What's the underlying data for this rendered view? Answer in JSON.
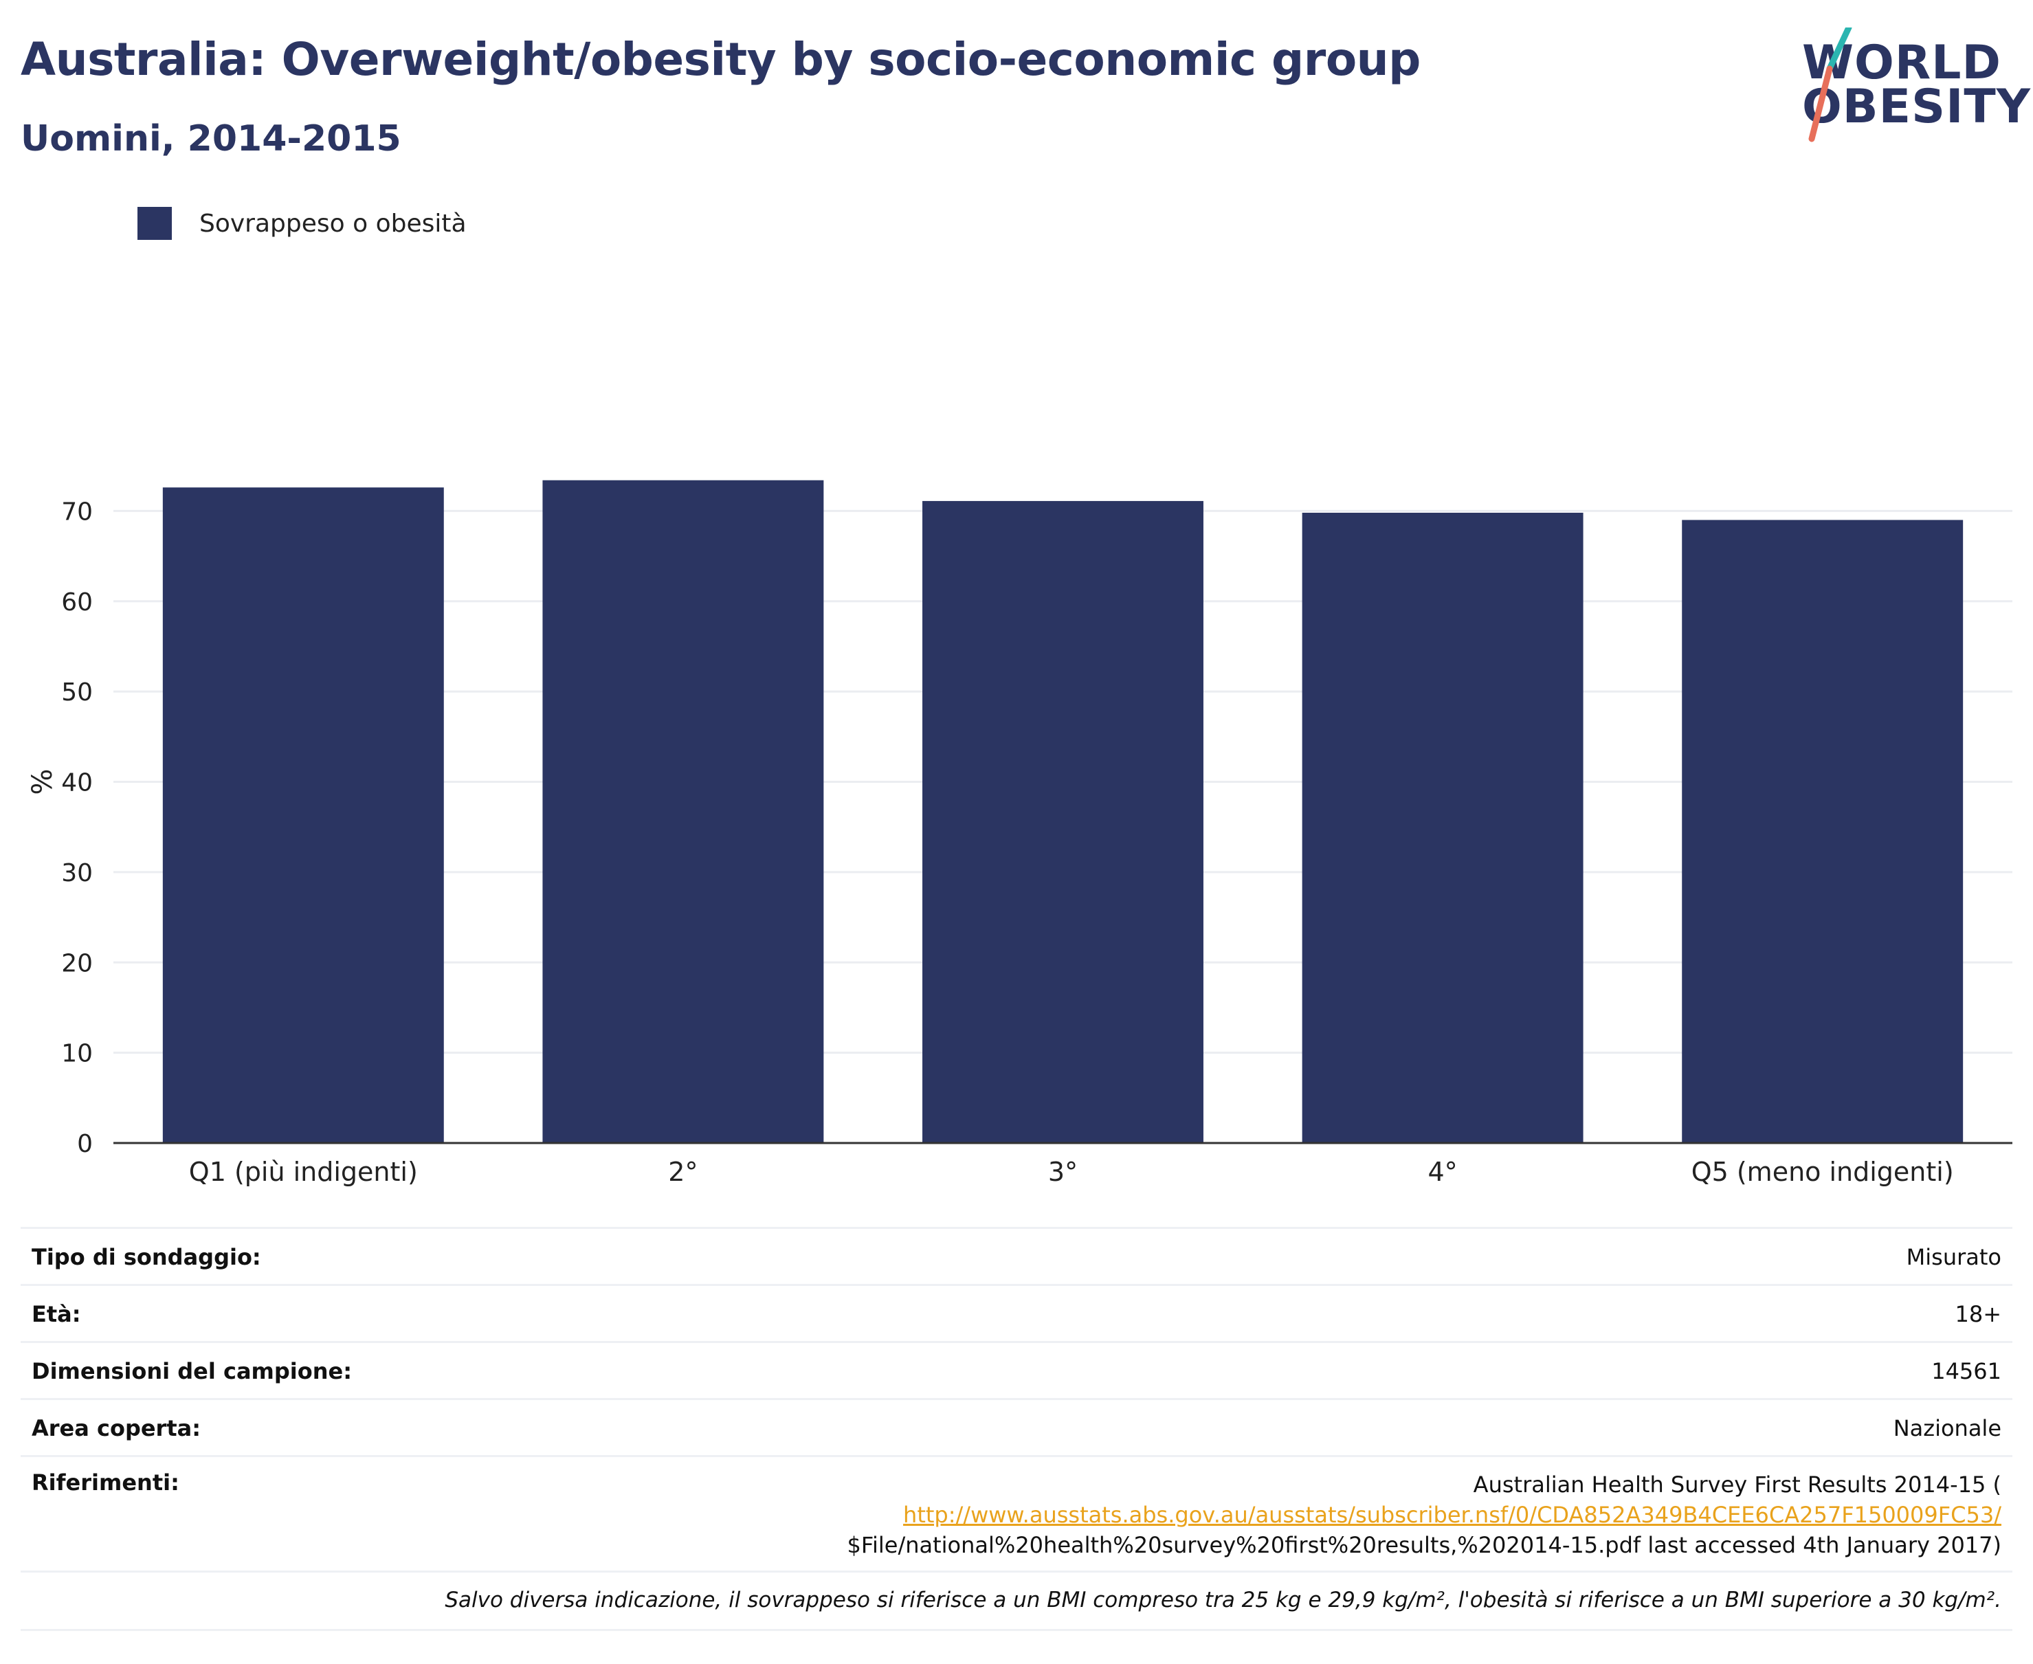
{
  "title": "Australia: Overweight/obesity by socio-economic group",
  "subtitle": "Uomini, 2014-2015",
  "logo": {
    "line1": "WORLD",
    "line2": "OBESITY"
  },
  "legend": {
    "label": "Sovrappeso o obesità",
    "color": "#2b3562"
  },
  "chart_data": {
    "type": "bar",
    "categories": [
      "Q1 (più indigenti)",
      "2°",
      "3°",
      "4°",
      "Q5 (meno indigenti)"
    ],
    "series": [
      {
        "name": "Sovrappeso o obesità",
        "values": [
          72.6,
          73.4,
          71.1,
          69.8,
          69.0
        ]
      }
    ],
    "ylabel": "%",
    "xlabel": "",
    "ylim": [
      0,
      80
    ],
    "yticks": [
      0,
      10,
      20,
      30,
      40,
      50,
      60,
      70
    ],
    "grid": true,
    "legend_position": "top-left",
    "bar_color": "#2b3562"
  },
  "meta": {
    "survey_type": {
      "label": "Tipo di sondaggio:",
      "value": "Misurato"
    },
    "age": {
      "label": "Età:",
      "value": "18+"
    },
    "sample_size": {
      "label": "Dimensioni del campione:",
      "value": "14561"
    },
    "area": {
      "label": "Area coperta:",
      "value": "Nazionale"
    },
    "references": {
      "label": "Riferimenti:",
      "line1": "Australian Health Survey First Results 2014-15 (",
      "link": "http://www.ausstats.abs.gov.au/ausstats/subscriber.nsf/0/CDA852A349B4CEE6CA257F150009FC53/",
      "line3": "$File/national%20health%20survey%20first%20results,%202014-15.pdf last accessed 4th January 2017)"
    },
    "note": "Salvo diversa indicazione, il sovrappeso si riferisce a un BMI compreso tra 25 kg e 29,9 kg/m², l'obesità si riferisce a un BMI superiore a 30 kg/m²."
  }
}
